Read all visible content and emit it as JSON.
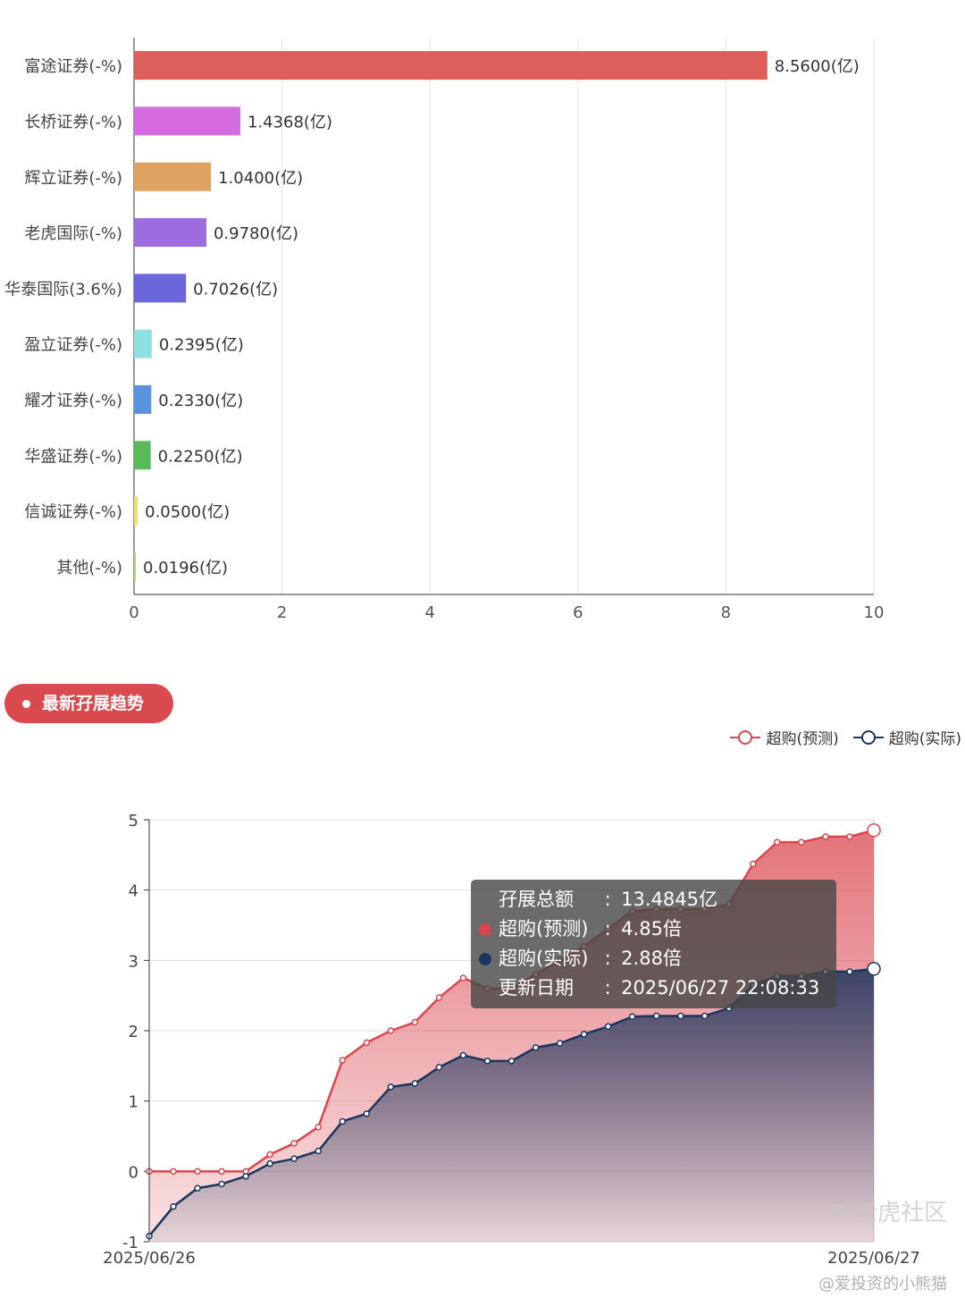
{
  "chart_data": [
    {
      "type": "bar",
      "orientation": "horizontal",
      "categories": [
        "富途证券(-%)",
        "长桥证券(-%)",
        "辉立证券(-%)",
        "老虎国际(-%)",
        "华泰国际(3.6%)",
        "盈立证券(-%)",
        "耀才证券(-%)",
        "华盛证券(-%)",
        "信诚证券(-%)",
        "其他(-%)"
      ],
      "values": [
        8.56,
        1.4368,
        1.04,
        0.978,
        0.7026,
        0.2395,
        0.233,
        0.225,
        0.05,
        0.0196
      ],
      "labels": [
        "8.5600(亿)",
        "1.4368(亿)",
        "1.0400(亿)",
        "0.9780(亿)",
        "0.7026(亿)",
        "0.2395(亿)",
        "0.2330(亿)",
        "0.2250(亿)",
        "0.0500(亿)",
        "0.0196(亿)"
      ],
      "colors": [
        "#dd5f5c",
        "#d56be0",
        "#e0a262",
        "#9d6ddf",
        "#6a66d9",
        "#8ee0e3",
        "#5b92e0",
        "#5ab95a",
        "#f0e070",
        "#a8d870"
      ],
      "xlim": [
        0,
        10
      ],
      "xticks": [
        0,
        2,
        4,
        6,
        8,
        10
      ],
      "grid": true
    },
    {
      "type": "area",
      "xlabels": [
        "2025/06/26",
        "2025/06/27"
      ],
      "ylim": [
        -1,
        5
      ],
      "yticks": [
        -1,
        0,
        1,
        2,
        3,
        4,
        5
      ],
      "grid": true,
      "legend_position": "top-right",
      "series": [
        {
          "name": "超购(预测)",
          "color": "#d9464e",
          "values": [
            0,
            0,
            0,
            0,
            0,
            0.24,
            0.4,
            0.63,
            1.58,
            1.83,
            2.0,
            2.12,
            2.47,
            2.75,
            2.6,
            2.6,
            2.8,
            3.0,
            3.2,
            3.45,
            3.7,
            3.73,
            3.73,
            3.73,
            3.8,
            4.37,
            4.68,
            4.68,
            4.76,
            4.76,
            4.85
          ]
        },
        {
          "name": "超购(实际)",
          "color": "#1c355e",
          "values": [
            -0.92,
            -0.5,
            -0.24,
            -0.18,
            -0.07,
            0.11,
            0.18,
            0.29,
            0.71,
            0.82,
            1.2,
            1.25,
            1.48,
            1.65,
            1.57,
            1.57,
            1.76,
            1.82,
            1.95,
            2.06,
            2.2,
            2.21,
            2.21,
            2.21,
            2.32,
            2.65,
            2.78,
            2.78,
            2.84,
            2.84,
            2.88
          ]
        }
      ]
    }
  ],
  "section": {
    "title": "最新孖展趋势"
  },
  "tooltip": {
    "rows": [
      {
        "key": "孖展总额",
        "value": "13.4845亿",
        "color": ""
      },
      {
        "key": "超购(预测)",
        "value": "4.85倍",
        "color": "#d9464e"
      },
      {
        "key": "超购(实际)",
        "value": "2.88倍",
        "color": "#1c355e"
      },
      {
        "key": "更新日期",
        "value": "2025/06/27 22:08:33",
        "color": ""
      }
    ]
  },
  "watermark": {
    "logo": "老虎社区",
    "user": "@爱投资的小熊猫"
  }
}
